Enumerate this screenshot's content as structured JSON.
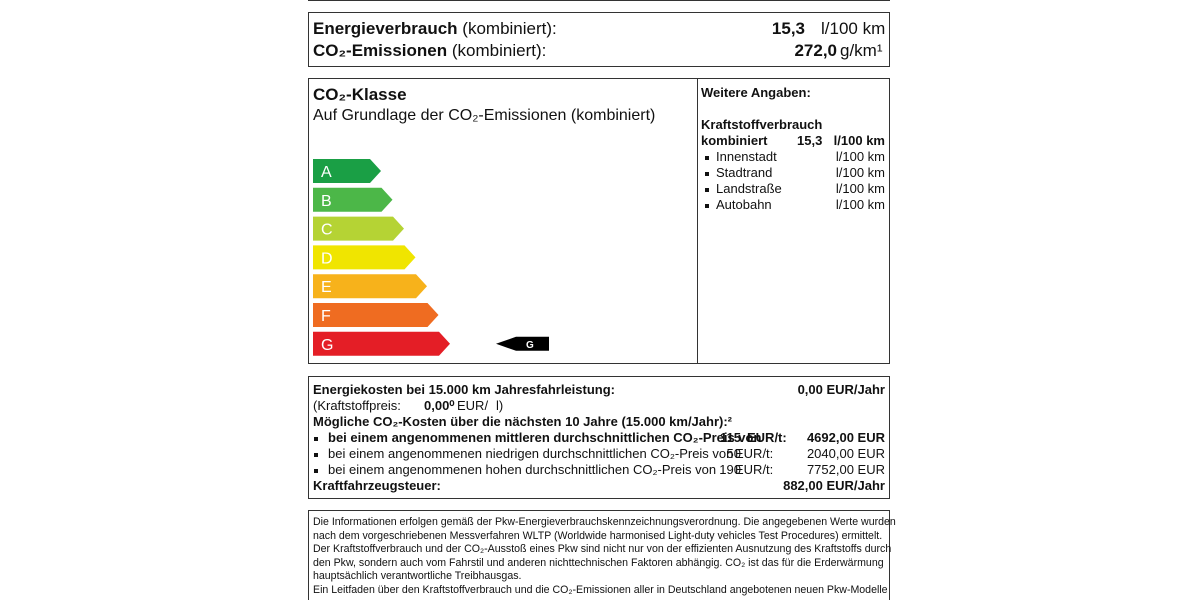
{
  "consumption": {
    "energy_label_bold": "Energieverbrauch",
    "energy_label": "(kombiniert):",
    "energy_value": "15,3",
    "energy_unit": "l/100 km",
    "co2_label_bold": "CO₂-Emissionen",
    "co2_label": "(kombiniert):",
    "co2_value": "272,0",
    "co2_unit": "g/km¹"
  },
  "co2_class": {
    "title": "CO₂-Klasse",
    "subtitle": "Auf Grundlage der CO₂-Emissionen (kombiniert)",
    "classes": [
      "A",
      "B",
      "C",
      "D",
      "E",
      "F",
      "G"
    ],
    "colors": [
      "#1a9f45",
      "#4cb748",
      "#b5d334",
      "#f0e500",
      "#f7b21b",
      "#ef6c21",
      "#e41e26"
    ],
    "current": "G"
  },
  "further": {
    "title": "Weitere Angaben:",
    "fuel_heading": "Kraftstoffverbrauch",
    "combined_label": "kombiniert",
    "combined_value": "15,3",
    "combined_unit": "l/100 km",
    "items": [
      {
        "label": "Innenstadt",
        "unit": "l/100 km"
      },
      {
        "label": "Stadtrand",
        "unit": "l/100 km"
      },
      {
        "label": "Landstraße",
        "unit": "l/100 km"
      },
      {
        "label": "Autobahn",
        "unit": "l/100 km"
      }
    ]
  },
  "costs": {
    "energy_label": "Energiekosten bei 15.000 km Jahresfahrleistung:",
    "energy_value": "0,00 EUR/Jahr",
    "fuel_price_label": "(Kraftstoffpreis:",
    "fuel_price_value": "0,00⁰",
    "fuel_price_unit": "EUR/",
    "fuel_price_unit2": "l)",
    "co2_costs_title": "Mögliche CO₂-Kosten über die nächsten 10 Jahre (15.000 km/Jahr):²",
    "scenarios": [
      {
        "text": "bei einem angenommenen mittleren durchschnittlichen CO₂-Preis von",
        "price": "115",
        "unit": "EUR/t:",
        "total": "4692,00 EUR",
        "bold": true
      },
      {
        "text": "bei einem angenommenen niedrigen durchschnittlichen CO₂-Preis von",
        "price": "50",
        "unit": "EUR/t:",
        "total": "2040,00 EUR",
        "bold": false
      },
      {
        "text": "bei einem angenommenen hohen durchschnittlichen CO₂-Preis von",
        "price": "190",
        "unit": "EUR/t:",
        "total": "7752,00 EUR",
        "bold": false
      }
    ],
    "tax_label": "Kraftfahrzeugsteuer:",
    "tax_value": "882,00 EUR/Jahr"
  },
  "notes": [
    "Die Informationen erfolgen gemäß der Pkw-Energieverbrauchskennzeichnungsverordnung. Die angegebenen Werte wurden",
    "nach dem vorgeschriebenen Messverfahren WLTP (Worldwide harmonised Light-duty vehicles Test Procedures) ermittelt.",
    "Der Kraftstoffverbrauch und der CO₂-Ausstoß eines Pkw sind nicht nur von der effizienten Ausnutzung des Kraftstoffs durch",
    "den Pkw, sondern auch vom Fahrstil und anderen nichttechnischen Faktoren abhängig. CO₂ ist das für die Erderwärmung",
    "hauptsächlich verantwortliche Treibhausgas.",
    "Ein Leitfaden über den Kraftstoffverbrauch und die CO₂-Emissionen aller in Deutschland angebotenen neuen Pkw-Modelle"
  ]
}
